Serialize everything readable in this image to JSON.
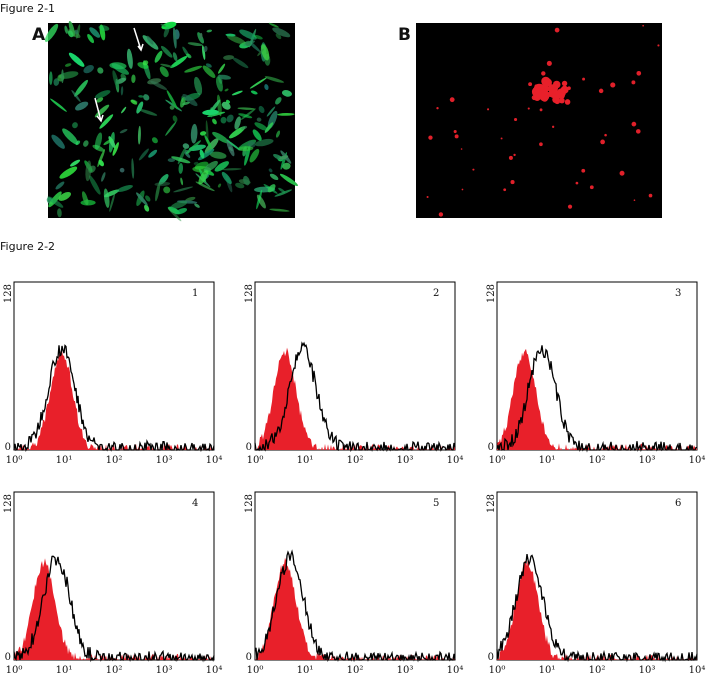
{
  "figure_1": {
    "label": "Figure 2-1",
    "panels": [
      {
        "letter": "A"
      },
      {
        "letter": "B"
      }
    ]
  },
  "figure_2": {
    "label": "Figure 2-2",
    "y_tick_labels": [
      "128",
      "0"
    ],
    "x_tick_labels": [
      "10⁰",
      "10¹",
      "10²",
      "10³",
      "10⁴"
    ],
    "panels": [
      {
        "number": "1"
      },
      {
        "number": "2"
      },
      {
        "number": "3"
      },
      {
        "number": "4"
      },
      {
        "number": "5"
      },
      {
        "number": "6"
      }
    ]
  }
}
